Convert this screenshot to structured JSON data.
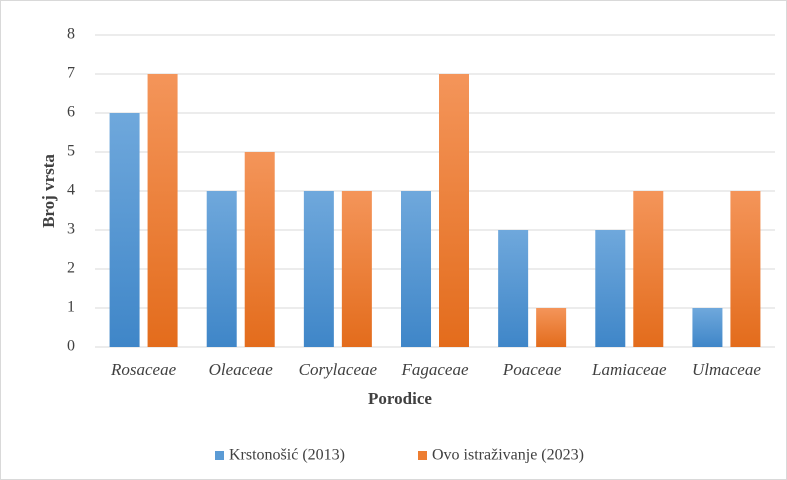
{
  "chart_data": {
    "type": "bar",
    "x_label": "Porodice",
    "y_label": "Broj vrsta",
    "categories": [
      "Rosaceae",
      "Oleaceae",
      "Corylaceae",
      "Fagaceae",
      "Poaceae",
      "Lamiaceae",
      "Ulmaceae"
    ],
    "series": [
      {
        "name": "Krstonošić (2013)",
        "color": "#5b9bd5",
        "values": [
          6,
          4,
          4,
          4,
          3,
          3,
          1
        ]
      },
      {
        "name": "Ovo istraživanje (2023)",
        "color": "#ed7d31",
        "values": [
          7,
          5,
          4,
          7,
          1,
          4,
          4
        ]
      }
    ],
    "ylim": [
      0,
      8
    ],
    "yticks": [
      0,
      1,
      2,
      3,
      4,
      5,
      6,
      7,
      8
    ],
    "grid": true,
    "legend": "bottom"
  }
}
